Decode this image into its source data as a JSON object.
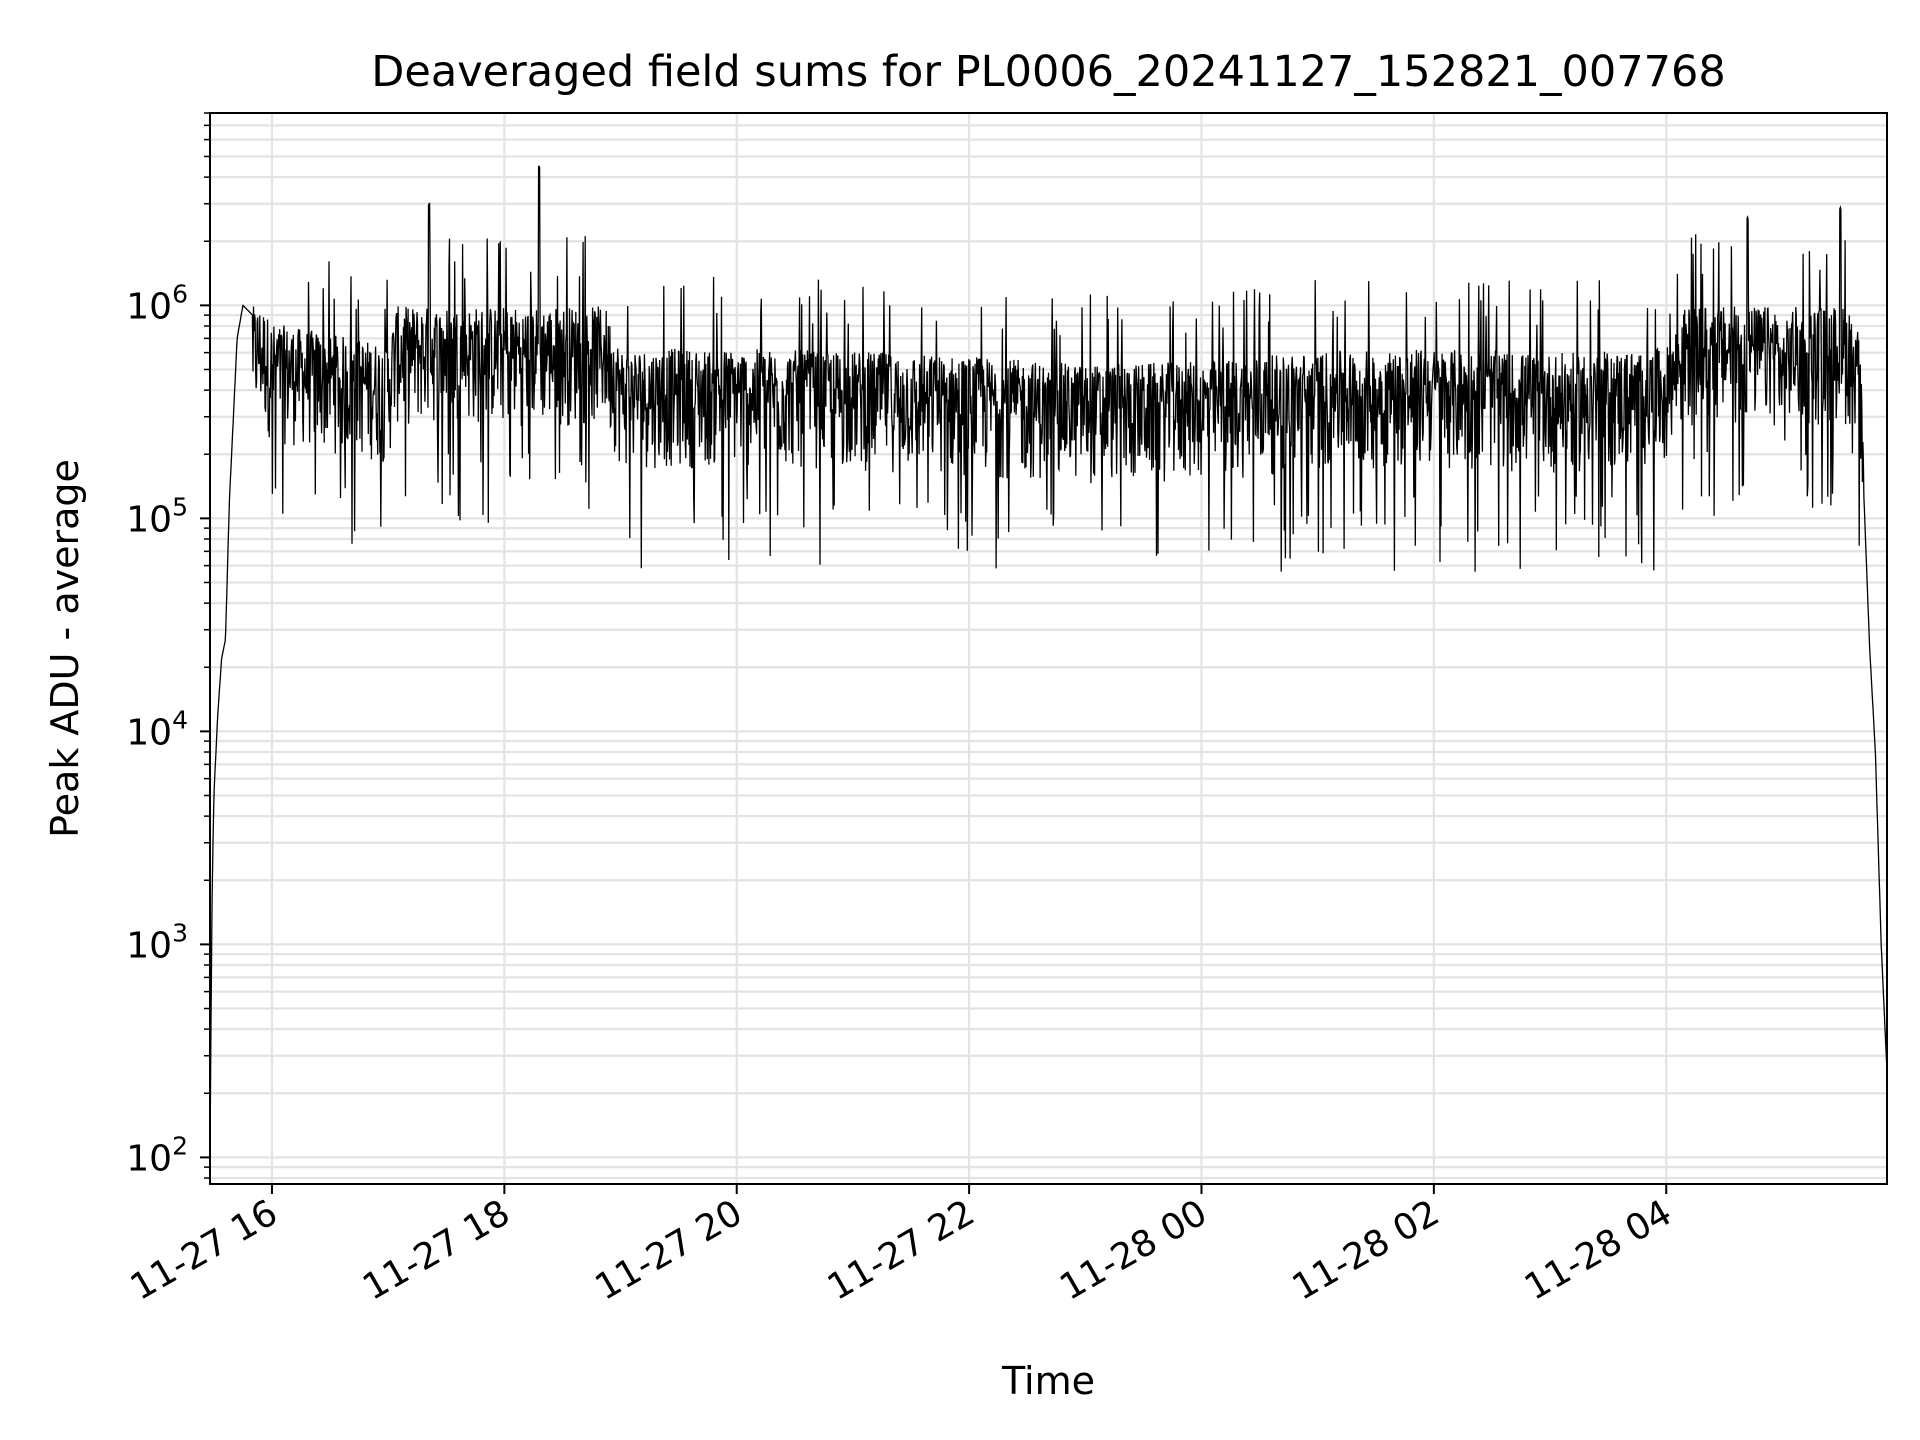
{
  "chart_data": {
    "type": "line",
    "title": "Deaveraged field sums for PL0006_20241127_152821_007768",
    "xlabel": "Time",
    "ylabel": "Peak ADU - average",
    "yscale": "log",
    "grid": true,
    "grid_minor": true,
    "x_range": [
      "2024-11-27 15:28",
      "2024-11-28 05:54"
    ],
    "ylim": [
      75,
      8000000
    ],
    "x_ticks": [
      {
        "value": "2024-11-27 16:00",
        "label": "11-27 16"
      },
      {
        "value": "2024-11-27 18:00",
        "label": "11-27 18"
      },
      {
        "value": "2024-11-27 20:00",
        "label": "11-27 20"
      },
      {
        "value": "2024-11-27 22:00",
        "label": "11-27 22"
      },
      {
        "value": "2024-11-28 00:00",
        "label": "11-28 00"
      },
      {
        "value": "2024-11-28 02:00",
        "label": "11-28 02"
      },
      {
        "value": "2024-11-28 04:00",
        "label": "11-28 04"
      }
    ],
    "y_ticks": [
      {
        "value": 100,
        "base": "10",
        "exp": "2"
      },
      {
        "value": 1000,
        "base": "10",
        "exp": "3"
      },
      {
        "value": 10000,
        "base": "10",
        "exp": "4"
      },
      {
        "value": 100000,
        "base": "10",
        "exp": "5"
      },
      {
        "value": 1000000,
        "base": "10",
        "exp": "6"
      }
    ],
    "line_color": "#000000",
    "grid_color": "#e3e3e3",
    "series": [
      {
        "points": [
          [
            "2024-11-27 15:28",
            100
          ],
          [
            "2024-11-27 15:29",
            1500
          ],
          [
            "2024-11-27 15:30",
            5000
          ],
          [
            "2024-11-27 15:32",
            12000
          ],
          [
            "2024-11-27 15:34",
            22000
          ],
          [
            "2024-11-27 15:36",
            27000
          ],
          [
            "2024-11-27 15:38",
            120000
          ],
          [
            "2024-11-27 15:42",
            700000
          ],
          [
            "2024-11-27 15:45",
            1000000
          ],
          [
            "2024-11-27 15:50",
            900000
          ],
          [
            "2024-11-27 15:55",
            600000
          ],
          [
            "2024-11-27 16:00",
            500000
          ],
          [
            "2024-11-27 17:00",
            400000
          ],
          [
            "2024-11-27 17:21",
            3000000
          ],
          [
            "2024-11-27 18:18",
            4500000
          ],
          [
            "2024-11-27 19:00",
            380000
          ],
          [
            "2024-11-27 20:00",
            380000
          ],
          [
            "2024-11-27 21:00",
            370000
          ],
          [
            "2024-11-27 22:00",
            350000
          ],
          [
            "2024-11-27 23:00",
            320000
          ],
          [
            "2024-11-28 00:00",
            330000
          ],
          [
            "2024-11-28 01:00",
            370000
          ],
          [
            "2024-11-28 02:00",
            380000
          ],
          [
            "2024-11-28 03:00",
            360000
          ],
          [
            "2024-11-28 04:00",
            380000
          ],
          [
            "2024-11-28 04:42",
            2600000
          ],
          [
            "2024-11-28 05:00",
            450000
          ],
          [
            "2024-11-28 05:30",
            2900000
          ],
          [
            "2024-11-28 05:40",
            400000
          ],
          [
            "2024-11-28 05:45",
            25000
          ],
          [
            "2024-11-28 05:48",
            8000
          ],
          [
            "2024-11-28 05:51",
            1000
          ],
          [
            "2024-11-28 05:54",
            250
          ]
        ]
      }
    ]
  }
}
